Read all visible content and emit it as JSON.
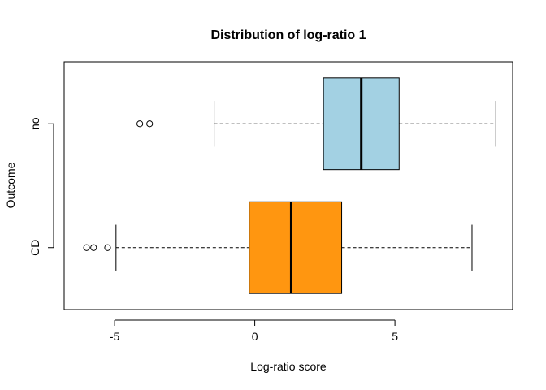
{
  "chart_data": {
    "type": "boxplot",
    "orientation": "horizontal",
    "title": "Distribution of log-ratio 1",
    "xlabel": "Log-ratio score",
    "ylabel": "Outcome",
    "xlim": [
      -6.8,
      9.2
    ],
    "xticks": [
      -5,
      0,
      5
    ],
    "xtick_labels": [
      "-5",
      "0",
      "5"
    ],
    "grid": false,
    "legend": "none",
    "boxes": [
      {
        "category": "CD",
        "whisker_low": -4.95,
        "q1": -0.2,
        "median": 1.3,
        "q3": 3.1,
        "whisker_high": 7.75,
        "outliers": [
          -6.0,
          -5.75,
          -5.25
        ],
        "color": "#ff9610"
      },
      {
        "category": "no",
        "whisker_low": -1.45,
        "q1": 2.45,
        "median": 3.8,
        "q3": 5.15,
        "whisker_high": 8.6,
        "outliers": [
          -4.1,
          -3.75
        ],
        "color": "#a3d1e3"
      }
    ]
  }
}
